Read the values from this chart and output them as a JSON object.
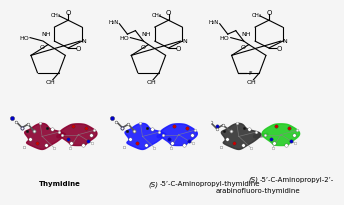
{
  "background_color": "#f5f5f5",
  "text_color": "#000000",
  "label1": "Thymidine",
  "label2_part1": "(S)",
  "label2_part2": "-5’-C-Aminopropyl-thymidine",
  "label3_part1": "(S)",
  "label3_part2": "-5’-C-Aminopropyl-2’-",
  "label3_part3": "arabinofluoro-thymidine",
  "mol1_sugar_color": "#8B0030",
  "mol1_base_color": "#8B0030",
  "mol2_color": "#1a1aff",
  "mol3_sugar_color": "#333333",
  "mol3_base_color": "#22cc22",
  "atom_white": "#ffffff",
  "atom_blue": "#0000cc",
  "atom_red": "#cc0000",
  "atom_black": "#111111",
  "divider_color": "#cccccc",
  "lw": 0.8
}
